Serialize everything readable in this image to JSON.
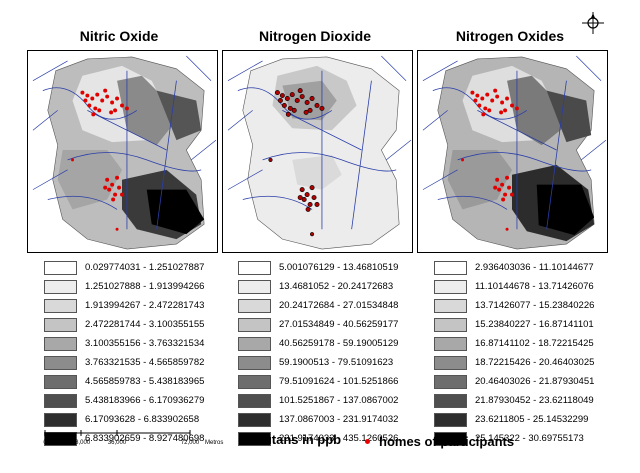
{
  "titles": {
    "no": "Nitric Oxide",
    "no2": "Nitrogen Dioxide",
    "nox": "Nitrogen Oxides"
  },
  "legends": {
    "no": [
      "0.029774031 - 1.251027887",
      "1.251027888 - 1.913994266",
      "1.913994267 - 2.472281743",
      "2.472281744 - 3.100355155",
      "3.100355156 - 3.763321534",
      "3.763321535 - 4.565859782",
      "4.565859783 - 5.438183965",
      "5.438183966 - 6.170936279",
      "6.17093628 - 6.833902658",
      "6.833902659 - 8.927480698"
    ],
    "no2": [
      "5.001076129 - 13.46810519",
      "13.4681052 - 20.24172683",
      "20.24172684 - 27.01534848",
      "27.01534849 - 40.56259177",
      "40.56259178 - 59.19005129",
      "59.1900513 - 79.51091623",
      "79.51091624 - 101.5251866",
      "101.5251867 - 137.0867002",
      "137.0867003 - 231.9174032",
      "231.9174033 - 435.1260526"
    ],
    "nox": [
      "2.936403036 - 11.10144677",
      "11.10144678 - 13.71426076",
      "13.71426077 - 15.23840226",
      "15.23840227 - 16.87141101",
      "16.87141102 - 18.72215425",
      "18.72215426 - 20.46403025",
      "20.46403026 - 21.87930451",
      "21.87930452 - 23.62118049",
      "23.6211805 - 25.14532299",
      "25.145322 - 30.69755173"
    ]
  },
  "swatch_colors": [
    "#ffffff",
    "#ededed",
    "#d9d9d9",
    "#c4c4c4",
    "#a8a8a8",
    "#8c8c8c",
    "#6e6e6e",
    "#4f4f4f",
    "#2e2e2e",
    "#000000"
  ],
  "scale": {
    "ticks": [
      "0",
      "18,000",
      "36,000",
      "72,000"
    ],
    "unit": "Metros"
  },
  "footer": {
    "pollutants_label": "Pollutans in ppb",
    "homes_label": "homes of participants"
  },
  "colors": {
    "participant_dot": "#e00000"
  }
}
